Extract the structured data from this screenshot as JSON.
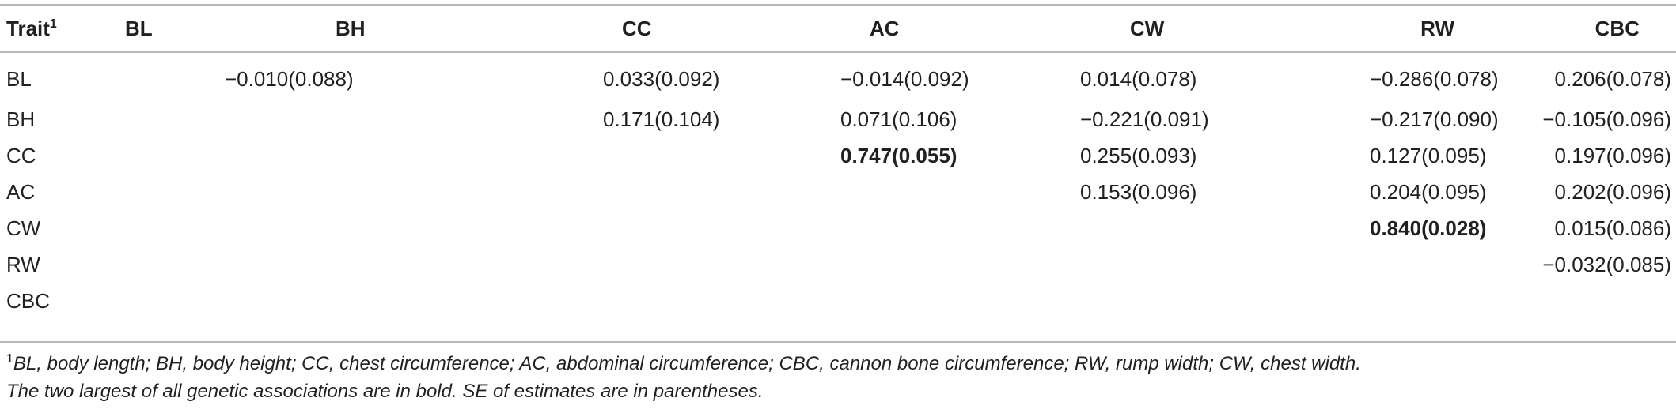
{
  "table": {
    "header": {
      "trait_label": "Trait",
      "trait_marker": "1",
      "columns": [
        "BL",
        "BH",
        "CC",
        "AC",
        "CW",
        "RW",
        "CBC"
      ]
    },
    "rows": [
      {
        "trait": "BL",
        "cells": [
          "",
          "−0.010(0.088)",
          "0.033(0.092)",
          "−0.014(0.092)",
          "0.014(0.078)",
          "−0.286(0.078)",
          "0.206(0.078)"
        ]
      },
      {
        "trait": "BH",
        "cells": [
          "",
          "",
          "0.171(0.104)",
          "0.071(0.106)",
          "−0.221(0.091)",
          "−0.217(0.090)",
          "−0.105(0.096)"
        ]
      },
      {
        "trait": "CC",
        "cells": [
          "",
          "",
          "",
          "0.747(0.055)",
          "0.255(0.093)",
          "0.127(0.095)",
          "0.197(0.096)"
        ]
      },
      {
        "trait": "AC",
        "cells": [
          "",
          "",
          "",
          "",
          "0.153(0.096)",
          "0.204(0.095)",
          "0.202(0.096)"
        ]
      },
      {
        "trait": "CW",
        "cells": [
          "",
          "",
          "",
          "",
          "",
          "0.840(0.028)",
          "0.015(0.086)"
        ]
      },
      {
        "trait": "RW",
        "cells": [
          "",
          "",
          "",
          "",
          "",
          "",
          "−0.032(0.085)"
        ]
      },
      {
        "trait": "CBC",
        "cells": [
          "",
          "",
          "",
          "",
          "",
          "",
          ""
        ]
      }
    ],
    "bold_cells": [
      [
        2,
        3
      ],
      [
        4,
        5
      ]
    ]
  },
  "footnote": {
    "marker": "1",
    "line1": "BL, body length; BH, body height; CC, chest circumference; AC, abdominal circumference; CBC, cannon bone circumference; RW, rump width; CW, chest width.",
    "line2": "The two largest of all genetic associations are in bold. SE of estimates are in parentheses."
  },
  "colors": {
    "text": "#231f20",
    "rule": "#b8b8b8"
  }
}
